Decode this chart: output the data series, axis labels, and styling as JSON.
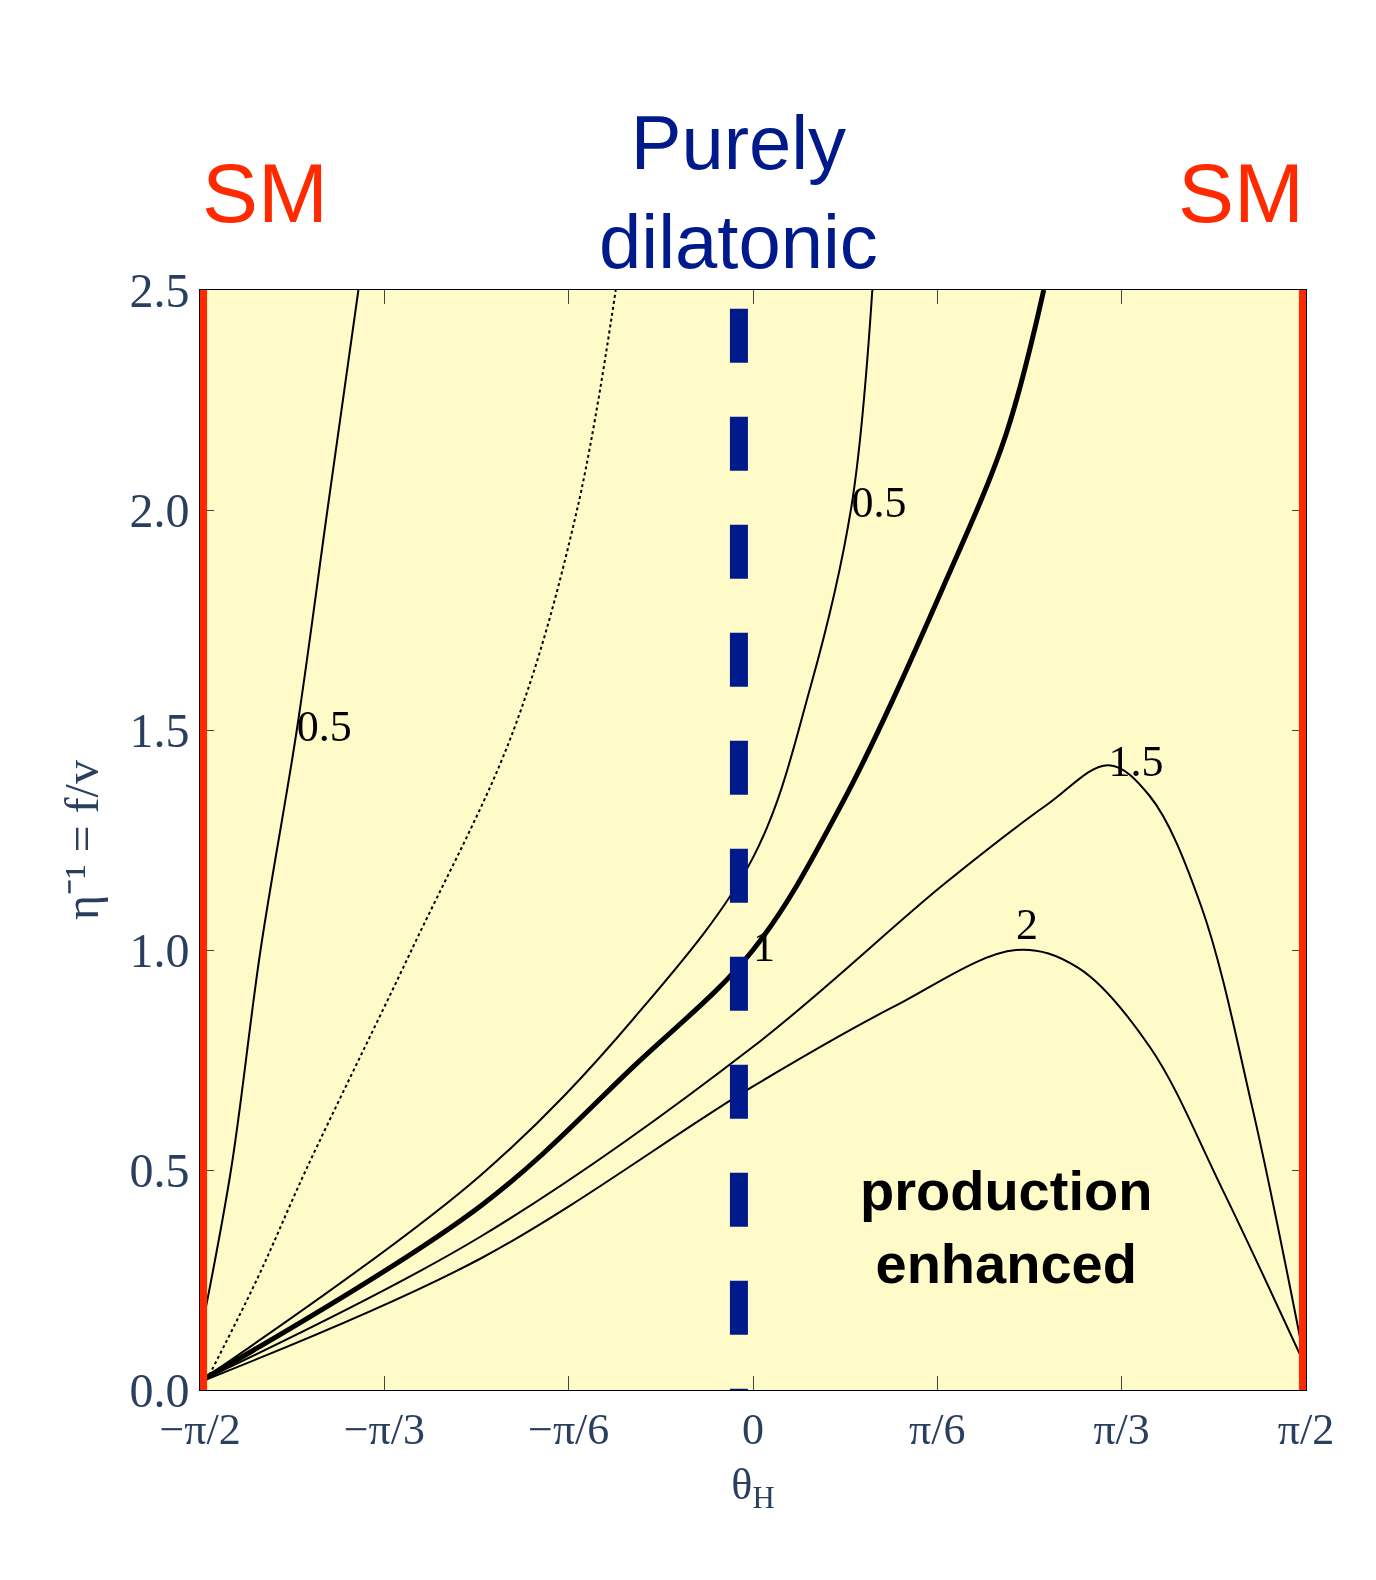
{
  "chart_data": {
    "type": "line",
    "xlabel": "θ$_{H}$",
    "ylabel": "η⁻¹ = f/v",
    "xlim": [
      -1.571,
      1.571
    ],
    "xticks": [
      {
        "value": -1.5708,
        "label": "−π/2"
      },
      {
        "value": -1.0472,
        "label": "−π/3"
      },
      {
        "value": -0.5236,
        "label": "−π/6"
      },
      0,
      {
        "value": 0.5236,
        "label": "π/6"
      },
      {
        "value": 1.0472,
        "label": "π/3"
      },
      {
        "value": 1.5708,
        "label": "π/2"
      }
    ],
    "ylim": [
      0,
      2.5
    ],
    "yticks": [
      {
        "value": 0,
        "label": "0.0"
      },
      0.5,
      {
        "value": 1,
        "label": "1.0"
      },
      1.5,
      {
        "value": 2,
        "label": "2.0"
      },
      2.5
    ],
    "grid": false,
    "legend": false,
    "series": [
      {
        "name": "0.5",
        "color": "#000000",
        "line_style": "solid",
        "x": [
          -1.571,
          -1.483,
          -1.399,
          -1.296,
          -1.209,
          -1.121
        ],
        "values": [
          0.12,
          0.5,
          1.0,
          1.5,
          2.0,
          2.5
        ]
      },
      {
        "color": "#000000",
        "line_style": "dotted",
        "x": [
          -1.56,
          -1.41,
          -1.27,
          -0.97,
          -0.68,
          -0.5,
          -0.39
        ],
        "values": [
          0.01,
          0.25,
          0.5,
          1.0,
          1.5,
          2.0,
          2.5
        ]
      },
      {
        "name": "0.5",
        "color": "#000000",
        "line_style": "solid",
        "x": [
          -1.571,
          -0.771,
          -0.333,
          0,
          0.164,
          0.28,
          0.339
        ],
        "values": [
          0.02,
          0.49,
          0.85,
          1.21,
          1.6,
          2.01,
          2.5
        ]
      },
      {
        "name": "1",
        "color": "#000000",
        "line_style": "solid",
        "x": [
          -1.571,
          -0.771,
          -0.333,
          0,
          0.251,
          0.543,
          0.718,
          0.826
        ],
        "values": [
          0.02,
          0.42,
          0.74,
          1.0,
          1.33,
          1.83,
          2.17,
          2.5
        ]
      },
      {
        "name": "1.5",
        "color": "#000000",
        "line_style": "solid",
        "x": [
          -1.571,
          -0.771,
          0,
          0.543,
          0.835,
          1.01,
          1.127,
          1.273,
          1.419,
          1.571
        ],
        "values": [
          0.02,
          0.35,
          0.78,
          1.15,
          1.33,
          1.42,
          1.35,
          1.1,
          0.64,
          0.05
        ]
      },
      {
        "name": "2",
        "color": "#000000",
        "line_style": "solid",
        "x": [
          -1.55,
          -0.771,
          0,
          0.397,
          0.747,
          0.923,
          1.127,
          1.331,
          1.56
        ],
        "values": [
          0.025,
          0.3,
          0.69,
          0.87,
          1.0,
          0.96,
          0.78,
          0.46,
          0.07
        ]
      }
    ],
    "ref_lines": [
      {
        "axis": "x",
        "value": -1.5708,
        "label": "SM",
        "color": "#ff2a00",
        "line_style": "solid"
      },
      {
        "axis": "x",
        "value": 1.5708,
        "label": "SM",
        "color": "#ff2a00",
        "line_style": "solid"
      },
      {
        "axis": "x",
        "value": -0.04,
        "label": "Purely dilatonic",
        "color": "#001a8c",
        "line_style": "dashed"
      }
    ],
    "annotations": [
      "production enhanced"
    ]
  }
}
